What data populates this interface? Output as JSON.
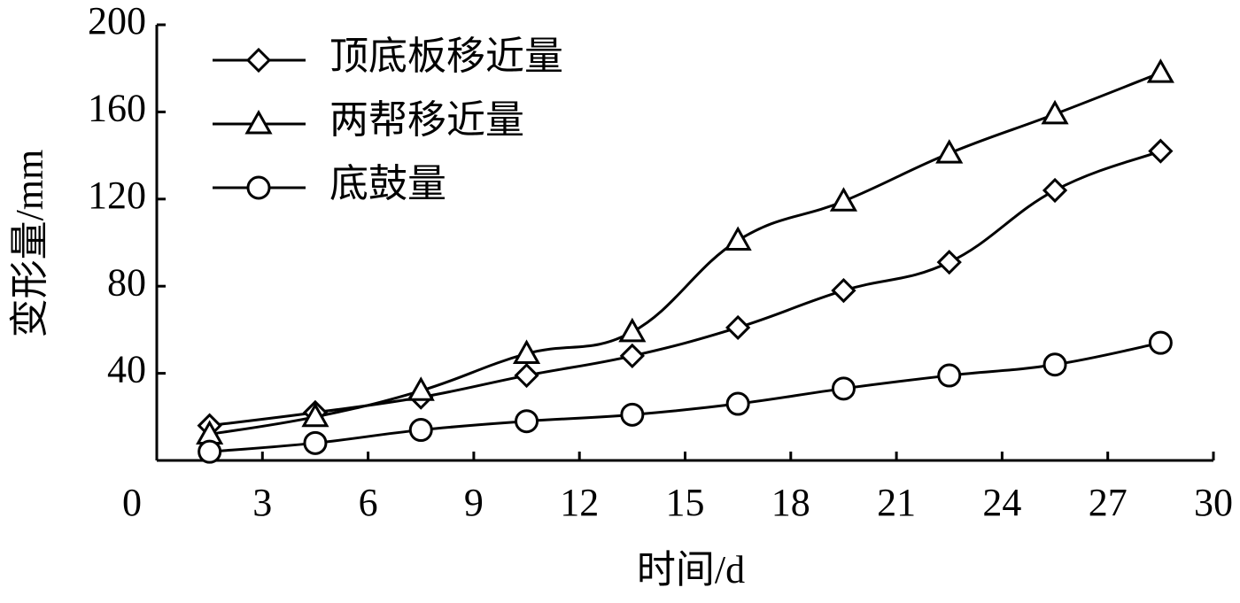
{
  "chart_data": {
    "type": "line",
    "x_label": "时间/d",
    "y_label": "变形量/mm",
    "x": [
      1.5,
      4.5,
      7.5,
      10.5,
      13.5,
      16.5,
      19.5,
      22.5,
      25.5,
      28.5
    ],
    "series": [
      {
        "name": "顶底板移近量",
        "color": "#000000",
        "marker": "diamond",
        "values": [
          16,
          22,
          29,
          39,
          48,
          61,
          78,
          91,
          124,
          142
        ]
      },
      {
        "name": "两帮移近量",
        "color": "#000000",
        "marker": "triangle",
        "values": [
          12,
          20,
          32,
          49,
          59,
          101,
          119,
          141,
          159,
          178
        ]
      },
      {
        "name": "底鼓量",
        "color": "#000000",
        "marker": "circle",
        "values": [
          4,
          8,
          14,
          18,
          21,
          26,
          33,
          39,
          44,
          54
        ]
      }
    ],
    "xlim": [
      0,
      30
    ],
    "xticks": [
      0,
      3,
      6,
      9,
      12,
      15,
      18,
      21,
      24,
      27,
      30
    ],
    "ylim": [
      0,
      200
    ],
    "yticks": [
      40,
      80,
      120,
      160,
      200
    ],
    "legend": "top-left",
    "grid": false
  }
}
